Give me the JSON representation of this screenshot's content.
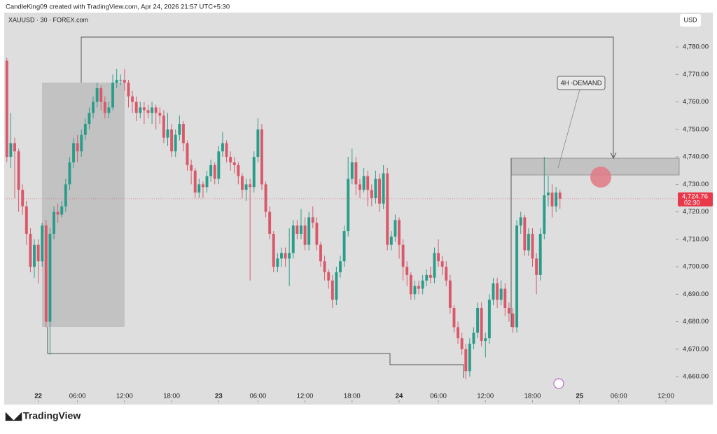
{
  "header": {
    "text": "CandleKing09 created with TradingView.com, Apr 24, 2026 21:57 UTC+5:30"
  },
  "footer": {
    "brand": "TradingView"
  },
  "chart_data": {
    "type": "candlestick",
    "title": "XAUUSD · 30 · FOREX.com",
    "currency": "USD",
    "annotation": "4H -DEMAND",
    "last_price_label": "4,724.76",
    "countdown": "02:30",
    "up_color": "#2a9d8a",
    "down_color": "#d9596b",
    "grid": false,
    "xlim": [
      -0.5,
      170.5
    ],
    "xticks": [
      {
        "value": 8,
        "label": "22"
      },
      {
        "value": 18,
        "label": "06:00"
      },
      {
        "value": 30,
        "label": "12:00"
      },
      {
        "value": 42,
        "label": "18:00"
      },
      {
        "value": 54,
        "label": "23"
      },
      {
        "value": 64,
        "label": "06:00"
      },
      {
        "value": 76,
        "label": "12:00"
      },
      {
        "value": 88,
        "label": "18:00"
      },
      {
        "value": 100,
        "label": "24"
      },
      {
        "value": 110,
        "label": "06:00"
      },
      {
        "value": 122,
        "label": "12:00"
      },
      {
        "value": 134,
        "label": "18:00"
      },
      {
        "value": 146,
        "label": "25"
      },
      {
        "value": 156,
        "label": "06:00"
      },
      {
        "value": 168,
        "label": "12:00"
      }
    ],
    "ylim": [
      4650.6,
      4792
    ],
    "yticks": [
      {
        "value": 4660,
        "label": "4,660.00"
      },
      {
        "value": 4670,
        "label": "4,670.00"
      },
      {
        "value": 4680,
        "label": "4,680.00"
      },
      {
        "value": 4690,
        "label": "4,690.00"
      },
      {
        "value": 4700,
        "label": "4,700.00"
      },
      {
        "value": 4710,
        "label": "4,710.00"
      },
      {
        "value": 4720,
        "label": "4,720.00"
      },
      {
        "value": 4730,
        "label": "4,730.00"
      },
      {
        "value": 4740,
        "label": "4,740.00"
      },
      {
        "value": 4750,
        "label": "4,750.00"
      },
      {
        "value": 4760,
        "label": "4,760.00"
      },
      {
        "value": 4770,
        "label": "4,770.00"
      },
      {
        "value": 4780,
        "label": "4,780.00"
      }
    ],
    "open": [
      4775,
      4740,
      4745,
      4742,
      4728,
      4722,
      4712,
      4700,
      4708,
      4702,
      4715,
      4680,
      4712,
      4720,
      4719,
      4722,
      4730,
      4738,
      4745,
      4742,
      4748,
      4752,
      4756,
      4760,
      4765,
      4760,
      4756,
      4758,
      4767,
      4768,
      4768,
      4767,
      4762,
      4760,
      4756,
      4758,
      4757,
      4756,
      4758,
      4756,
      4755,
      4747,
      4750,
      4742,
      4748,
      4752,
      4745,
      4737,
      4735,
      4727,
      4730,
      4729,
      4733,
      4737,
      4732,
      4742,
      4745,
      4740,
      4738,
      4737,
      4733,
      4728,
      4730,
      4729,
      4740,
      4750,
      4730,
      4720,
      4712,
      4700,
      4703,
      4705,
      4703,
      4705,
      4715,
      4712,
      4715,
      4708,
      4718,
      4716,
      4708,
      4702,
      4698,
      4695,
      4688,
      4698,
      4702,
      4713,
      4732,
      4738,
      4730,
      4728,
      4733,
      4728,
      4725,
      4732,
      4723,
      4734,
      4708,
      4711,
      4717,
      4708,
      4700,
      4697,
      4690,
      4693,
      4692,
      4695,
      4697,
      4696,
      4705,
      4702,
      4700,
      4695,
      4685,
      4678,
      4674,
      4670,
      4662,
      4672,
      4676,
      4685,
      4673,
      4674,
      4688,
      4694,
      4688,
      4692,
      4685,
      4683,
      4678,
      4715,
      4718,
      4706,
      4712,
      4703,
      4697,
      4712,
      4726,
      4727,
      4722,
      4727
    ],
    "high": [
      4776,
      4756,
      4747,
      4743,
      4730,
      4724,
      4714,
      4710,
      4710,
      4716,
      4717,
      4714,
      4722,
      4723,
      4724,
      4732,
      4740,
      4747,
      4748,
      4750,
      4754,
      4758,
      4762,
      4767,
      4766,
      4762,
      4760,
      4770,
      4772,
      4770,
      4772,
      4768,
      4764,
      4762,
      4760,
      4760,
      4759,
      4760,
      4759,
      4758,
      4757,
      4756,
      4752,
      4750,
      4755,
      4753,
      4746,
      4739,
      4736,
      4732,
      4731,
      4735,
      4739,
      4738,
      4744,
      4749,
      4746,
      4742,
      4740,
      4738,
      4734,
      4732,
      4732,
      4742,
      4754,
      4752,
      4731,
      4722,
      4713,
      4705,
      4707,
      4707,
      4714,
      4717,
      4717,
      4721,
      4718,
      4720,
      4722,
      4718,
      4709,
      4704,
      4699,
      4697,
      4700,
      4704,
      4715,
      4740,
      4743,
      4740,
      4732,
      4736,
      4735,
      4730,
      4735,
      4734,
      4737,
      4736,
      4713,
      4719,
      4718,
      4710,
      4702,
      4698,
      4695,
      4695,
      4697,
      4699,
      4700,
      4707,
      4710,
      4704,
      4702,
      4697,
      4686,
      4680,
      4676,
      4672,
      4674,
      4678,
      4687,
      4687,
      4676,
      4690,
      4696,
      4696,
      4695,
      4694,
      4687,
      4685,
      4717,
      4720,
      4719,
      4714,
      4714,
      4705,
      4714,
      4740,
      4733,
      4730,
      4729,
      4728
    ],
    "low": [
      4738,
      4736,
      4725,
      4720,
      4719,
      4708,
      4698,
      4696,
      4694,
      4700,
      4678,
      4668,
      4710,
      4716,
      4718,
      4720,
      4728,
      4736,
      4738,
      4740,
      4746,
      4750,
      4754,
      4758,
      4757,
      4754,
      4754,
      4757,
      4765,
      4766,
      4764,
      4758,
      4756,
      4753,
      4754,
      4752,
      4754,
      4752,
      4750,
      4752,
      4745,
      4744,
      4740,
      4740,
      4746,
      4742,
      4735,
      4730,
      4725,
      4725,
      4725,
      4727,
      4731,
      4730,
      4730,
      4740,
      4738,
      4735,
      4734,
      4730,
      4725,
      4724,
      4695,
      4727,
      4738,
      4728,
      4718,
      4710,
      4698,
      4698,
      4700,
      4700,
      4693,
      4703,
      4710,
      4710,
      4706,
      4706,
      4714,
      4706,
      4700,
      4695,
      4692,
      4685,
      4686,
      4696,
      4700,
      4711,
      4730,
      4726,
      4725,
      4727,
      4722,
      4722,
      4723,
      4720,
      4721,
      4706,
      4706,
      4709,
      4703,
      4695,
      4693,
      4688,
      4688,
      4690,
      4690,
      4693,
      4694,
      4694,
      4700,
      4697,
      4693,
      4683,
      4676,
      4672,
      4668,
      4659,
      4660,
      4670,
      4674,
      4671,
      4667,
      4672,
      4686,
      4685,
      4686,
      4682,
      4680,
      4676,
      4676,
      4712,
      4704,
      4704,
      4700,
      4690,
      4695,
      4710,
      4722,
      4718,
      4720,
      4721
    ],
    "close": [
      4740,
      4745,
      4742,
      4728,
      4722,
      4712,
      4700,
      4708,
      4702,
      4715,
      4680,
      4712,
      4720,
      4719,
      4722,
      4730,
      4738,
      4745,
      4742,
      4748,
      4752,
      4756,
      4760,
      4765,
      4760,
      4756,
      4758,
      4767,
      4768,
      4768,
      4767,
      4762,
      4760,
      4756,
      4758,
      4757,
      4756,
      4758,
      4756,
      4755,
      4747,
      4750,
      4742,
      4748,
      4752,
      4745,
      4737,
      4735,
      4727,
      4730,
      4729,
      4733,
      4737,
      4732,
      4742,
      4745,
      4740,
      4738,
      4737,
      4733,
      4728,
      4730,
      4729,
      4740,
      4750,
      4730,
      4720,
      4712,
      4700,
      4703,
      4705,
      4703,
      4705,
      4715,
      4712,
      4715,
      4708,
      4718,
      4716,
      4708,
      4702,
      4698,
      4695,
      4688,
      4698,
      4702,
      4713,
      4732,
      4738,
      4730,
      4728,
      4733,
      4728,
      4725,
      4732,
      4723,
      4734,
      4708,
      4711,
      4717,
      4708,
      4700,
      4697,
      4690,
      4693,
      4692,
      4695,
      4697,
      4696,
      4705,
      4702,
      4700,
      4695,
      4685,
      4678,
      4674,
      4670,
      4662,
      4672,
      4676,
      4685,
      4673,
      4674,
      4688,
      4694,
      4688,
      4692,
      4685,
      4683,
      4678,
      4715,
      4718,
      4706,
      4712,
      4703,
      4697,
      4712,
      4726,
      4727,
      4722,
      4727,
      4724.76
    ]
  }
}
